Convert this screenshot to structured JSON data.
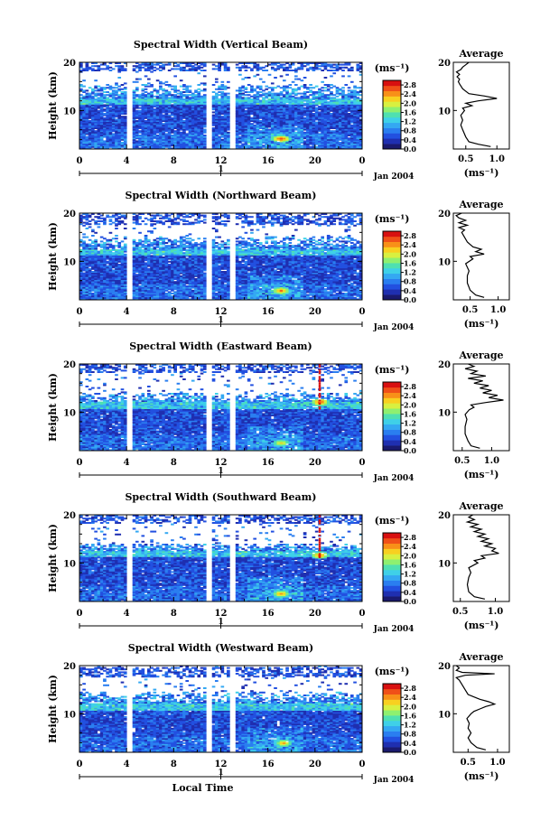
{
  "figure": {
    "date_label": "Jan 2004",
    "day_label": "1",
    "xlabel": "Local Time",
    "ylabel": "Height (km)",
    "unit_label": "(ms⁻¹)",
    "average_title": "Average",
    "average_xlabel": "(ms⁻¹)"
  },
  "colors": {
    "colormap": [
      "#1a1a6e",
      "#1f2fb0",
      "#2250e0",
      "#2a7ef0",
      "#34a8f2",
      "#3fd0e8",
      "#4fe0b0",
      "#8ef070",
      "#d8f040",
      "#f8d020",
      "#f89018",
      "#f05018",
      "#d81010"
    ],
    "gap": "#ffffff",
    "profile_line": "#000000"
  },
  "chart_data": [
    {
      "type": "heatmap",
      "title": "Spectral Width (Vertical Beam)",
      "xlabel": "Local Time",
      "ylabel": "Height (km)",
      "x_ticks": [
        "0",
        "4",
        "8",
        "12",
        "16",
        "20",
        "0"
      ],
      "x_range": [
        0,
        24
      ],
      "y_ticks": [
        "10",
        "20"
      ],
      "y_range": [
        2,
        20
      ],
      "colorbar_ticks": [
        "0.0",
        "0.4",
        "0.8",
        "1.2",
        "1.6",
        "2.0",
        "2.4",
        "2.8"
      ],
      "colorbar_unit": "(ms⁻¹)",
      "data_gaps_hours": [
        [
          4.1,
          4.5
        ],
        [
          10.9,
          11.2
        ],
        [
          12.8,
          13.1
        ]
      ],
      "high_band_km": [
        18,
        20
      ],
      "tropopause_km": 12.5,
      "mixing_top_km": 15.5,
      "hotspots": [
        {
          "t": 17.0,
          "h": 4.0,
          "v": 2.8
        }
      ],
      "profile": {
        "title": "Average",
        "xlabel": "(ms⁻¹)",
        "x_ticks": [
          "0.5",
          "1.0"
        ],
        "x_range": [
          0.3,
          1.2
        ],
        "y_ticks": [
          "10",
          "20"
        ],
        "y_range": [
          2,
          20
        ],
        "points": [
          [
            0.9,
            2.5
          ],
          [
            0.7,
            3.0
          ],
          [
            0.55,
            3.5
          ],
          [
            0.5,
            4.5
          ],
          [
            0.45,
            6.0
          ],
          [
            0.42,
            7.0
          ],
          [
            0.45,
            8.0
          ],
          [
            0.42,
            9.0
          ],
          [
            0.48,
            10.0
          ],
          [
            0.45,
            10.5
          ],
          [
            0.6,
            11.0
          ],
          [
            0.5,
            11.5
          ],
          [
            0.7,
            12.0
          ],
          [
            1.0,
            12.5
          ],
          [
            0.8,
            13.0
          ],
          [
            0.55,
            13.5
          ],
          [
            0.45,
            14.5
          ],
          [
            0.4,
            15.5
          ],
          [
            0.38,
            16.0
          ],
          [
            0.4,
            16.5
          ],
          [
            0.36,
            17.0
          ],
          [
            0.4,
            17.5
          ],
          [
            0.35,
            18.0
          ],
          [
            0.42,
            18.5
          ],
          [
            0.45,
            19.0
          ],
          [
            0.5,
            19.5
          ],
          [
            0.55,
            20.0
          ]
        ]
      }
    },
    {
      "type": "heatmap",
      "title": "Spectral Width (Northward Beam)",
      "xlabel": "Local Time",
      "ylabel": "Height (km)",
      "x_ticks": [
        "0",
        "4",
        "8",
        "12",
        "16",
        "20",
        "0"
      ],
      "x_range": [
        0,
        24
      ],
      "y_ticks": [
        "10",
        "20"
      ],
      "y_range": [
        2,
        20
      ],
      "colorbar_ticks": [
        "0.0",
        "0.4",
        "0.8",
        "1.2",
        "1.6",
        "2.0",
        "2.4",
        "2.8"
      ],
      "colorbar_unit": "(ms⁻¹)",
      "data_gaps_hours": [
        [
          4.1,
          4.5
        ],
        [
          10.9,
          11.2
        ],
        [
          12.8,
          13.1
        ]
      ],
      "high_band_km": [
        17.5,
        20
      ],
      "tropopause_km": 12.5,
      "mixing_top_km": 15.0,
      "hotspots": [
        {
          "t": 17.0,
          "h": 3.8,
          "v": 2.6
        }
      ],
      "profile": {
        "title": "Average",
        "xlabel": "(ms⁻¹)",
        "x_ticks": [
          "0.5",
          "1.0"
        ],
        "x_range": [
          0.2,
          1.2
        ],
        "y_ticks": [
          "10",
          "20"
        ],
        "y_range": [
          2,
          20
        ],
        "points": [
          [
            0.75,
            2.5
          ],
          [
            0.6,
            3.0
          ],
          [
            0.5,
            4.0
          ],
          [
            0.45,
            5.5
          ],
          [
            0.45,
            7.0
          ],
          [
            0.48,
            8.0
          ],
          [
            0.42,
            9.5
          ],
          [
            0.55,
            10.5
          ],
          [
            0.5,
            11.0
          ],
          [
            0.75,
            11.5
          ],
          [
            0.6,
            12.0
          ],
          [
            0.7,
            12.5
          ],
          [
            0.55,
            13.0
          ],
          [
            0.5,
            13.5
          ],
          [
            0.45,
            14.0
          ],
          [
            0.4,
            15.0
          ],
          [
            0.35,
            16.0
          ],
          [
            0.4,
            16.5
          ],
          [
            0.3,
            17.0
          ],
          [
            0.45,
            17.5
          ],
          [
            0.3,
            18.0
          ],
          [
            0.42,
            18.5
          ],
          [
            0.3,
            19.0
          ],
          [
            0.25,
            19.5
          ],
          [
            0.35,
            20.0
          ]
        ]
      }
    },
    {
      "type": "heatmap",
      "title": "Spectral Width (Eastward Beam)",
      "xlabel": "Local Time",
      "ylabel": "Height (km)",
      "x_ticks": [
        "0",
        "4",
        "8",
        "12",
        "16",
        "20",
        "0"
      ],
      "x_range": [
        0,
        24
      ],
      "y_ticks": [
        "10",
        "20"
      ],
      "y_range": [
        2,
        20
      ],
      "colorbar_ticks": [
        "0.0",
        "0.4",
        "0.8",
        "1.2",
        "1.6",
        "2.0",
        "2.4",
        "2.8"
      ],
      "colorbar_unit": "(ms⁻¹)",
      "data_gaps_hours": [
        [
          4.1,
          4.5
        ],
        [
          10.9,
          11.2
        ],
        [
          12.8,
          13.1
        ]
      ],
      "high_band_km": [
        18,
        20
      ],
      "tropopause_km": 12.0,
      "mixing_top_km": 14.0,
      "hotspots": [
        {
          "t": 17.0,
          "h": 3.5,
          "v": 2.2
        },
        {
          "t": 20.3,
          "h": 12.0,
          "v": 2.8
        }
      ],
      "red_column_hour": 20.3,
      "profile": {
        "title": "Average",
        "xlabel": "(ms⁻¹)",
        "x_ticks": [
          "0.5",
          "1.0"
        ],
        "x_range": [
          0.35,
          1.3
        ],
        "y_ticks": [
          "10",
          "20"
        ],
        "y_range": [
          2,
          20
        ],
        "points": [
          [
            0.8,
            2.5
          ],
          [
            0.65,
            3.0
          ],
          [
            0.6,
            4.0
          ],
          [
            0.55,
            5.5
          ],
          [
            0.55,
            7.0
          ],
          [
            0.58,
            8.5
          ],
          [
            0.55,
            9.5
          ],
          [
            0.62,
            10.5
          ],
          [
            0.7,
            11.0
          ],
          [
            0.65,
            11.5
          ],
          [
            0.9,
            12.0
          ],
          [
            1.2,
            12.5
          ],
          [
            0.95,
            13.0
          ],
          [
            1.1,
            13.5
          ],
          [
            0.85,
            14.0
          ],
          [
            1.0,
            14.5
          ],
          [
            0.8,
            15.0
          ],
          [
            0.95,
            15.5
          ],
          [
            0.7,
            16.0
          ],
          [
            0.85,
            16.5
          ],
          [
            0.6,
            17.0
          ],
          [
            0.9,
            17.5
          ],
          [
            0.65,
            18.0
          ],
          [
            0.75,
            18.5
          ],
          [
            0.55,
            19.0
          ],
          [
            0.7,
            19.5
          ],
          [
            0.6,
            20.0
          ]
        ]
      }
    },
    {
      "type": "heatmap",
      "title": "Spectral Width (Southward Beam)",
      "xlabel": "Local Time",
      "ylabel": "Height (km)",
      "x_ticks": [
        "0",
        "4",
        "8",
        "12",
        "16",
        "20",
        "0"
      ],
      "x_range": [
        0,
        24
      ],
      "y_ticks": [
        "10",
        "20"
      ],
      "y_range": [
        2,
        20
      ],
      "colorbar_ticks": [
        "0.0",
        "0.4",
        "0.8",
        "1.2",
        "1.6",
        "2.0",
        "2.4",
        "2.8"
      ],
      "colorbar_unit": "(ms⁻¹)",
      "data_gaps_hours": [
        [
          4.1,
          4.5
        ],
        [
          10.9,
          11.2
        ],
        [
          12.8,
          13.1
        ]
      ],
      "high_band_km": [
        18,
        20
      ],
      "tropopause_km": 12.5,
      "mixing_top_km": 14.0,
      "hotspots": [
        {
          "t": 17.0,
          "h": 3.5,
          "v": 2.4
        },
        {
          "t": 20.3,
          "h": 11.5,
          "v": 2.6
        }
      ],
      "red_column_hour": 20.3,
      "profile": {
        "title": "Average",
        "xlabel": "(ms⁻¹)",
        "x_ticks": [
          "0.5",
          "1.0"
        ],
        "x_range": [
          0.4,
          1.2
        ],
        "y_ticks": [
          "10",
          "20"
        ],
        "y_range": [
          2,
          20
        ],
        "points": [
          [
            0.85,
            2.5
          ],
          [
            0.7,
            3.0
          ],
          [
            0.62,
            4.0
          ],
          [
            0.6,
            5.5
          ],
          [
            0.62,
            7.0
          ],
          [
            0.65,
            8.0
          ],
          [
            0.62,
            9.0
          ],
          [
            0.75,
            10.0
          ],
          [
            0.7,
            10.5
          ],
          [
            0.85,
            11.0
          ],
          [
            0.8,
            11.5
          ],
          [
            1.05,
            12.0
          ],
          [
            0.95,
            12.5
          ],
          [
            1.0,
            13.0
          ],
          [
            0.85,
            13.5
          ],
          [
            0.95,
            14.0
          ],
          [
            0.8,
            14.5
          ],
          [
            0.9,
            15.0
          ],
          [
            0.75,
            15.5
          ],
          [
            0.85,
            16.0
          ],
          [
            0.7,
            16.5
          ],
          [
            0.8,
            17.0
          ],
          [
            0.65,
            17.5
          ],
          [
            0.75,
            18.0
          ],
          [
            0.6,
            18.5
          ],
          [
            0.7,
            19.0
          ],
          [
            0.62,
            19.5
          ],
          [
            0.68,
            20.0
          ]
        ]
      }
    },
    {
      "type": "heatmap",
      "title": "Spectral Width (Westward Beam)",
      "xlabel": "Local Time",
      "ylabel": "Height (km)",
      "x_ticks": [
        "0",
        "4",
        "8",
        "12",
        "16",
        "20",
        "0"
      ],
      "x_range": [
        0,
        24
      ],
      "y_ticks": [
        "10",
        "20"
      ],
      "y_range": [
        2,
        20
      ],
      "colorbar_ticks": [
        "0.0",
        "0.4",
        "0.8",
        "1.2",
        "1.6",
        "2.0",
        "2.4",
        "2.8"
      ],
      "colorbar_unit": "(ms⁻¹)",
      "data_gaps_hours": [
        [
          4.1,
          4.5
        ],
        [
          10.9,
          11.2
        ],
        [
          12.8,
          13.1
        ]
      ],
      "high_band_km": [
        17.5,
        19.5
      ],
      "tropopause_km": 12.0,
      "mixing_top_km": 14.5,
      "hotspots": [
        {
          "t": 17.2,
          "h": 3.8,
          "v": 2.4
        }
      ],
      "profile": {
        "title": "Average",
        "xlabel": "(ms⁻¹)",
        "x_ticks": [
          "0.5",
          "1.0"
        ],
        "x_range": [
          0.25,
          1.2
        ],
        "y_ticks": [
          "10",
          "20"
        ],
        "y_range": [
          2,
          20
        ],
        "points": [
          [
            0.8,
            2.5
          ],
          [
            0.65,
            3.0
          ],
          [
            0.55,
            4.0
          ],
          [
            0.5,
            5.0
          ],
          [
            0.55,
            6.0
          ],
          [
            0.5,
            7.0
          ],
          [
            0.52,
            8.0
          ],
          [
            0.48,
            9.0
          ],
          [
            0.55,
            10.0
          ],
          [
            0.6,
            10.5
          ],
          [
            0.7,
            11.0
          ],
          [
            0.8,
            11.5
          ],
          [
            0.95,
            12.0
          ],
          [
            0.85,
            12.5
          ],
          [
            0.7,
            13.0
          ],
          [
            0.6,
            13.5
          ],
          [
            0.5,
            14.0
          ],
          [
            0.45,
            15.0
          ],
          [
            0.4,
            16.0
          ],
          [
            0.35,
            17.0
          ],
          [
            0.3,
            17.5
          ],
          [
            0.45,
            18.0
          ],
          [
            0.95,
            18.3
          ],
          [
            0.4,
            18.6
          ],
          [
            0.3,
            19.0
          ],
          [
            0.35,
            19.5
          ],
          [
            0.3,
            20.0
          ]
        ]
      }
    }
  ]
}
